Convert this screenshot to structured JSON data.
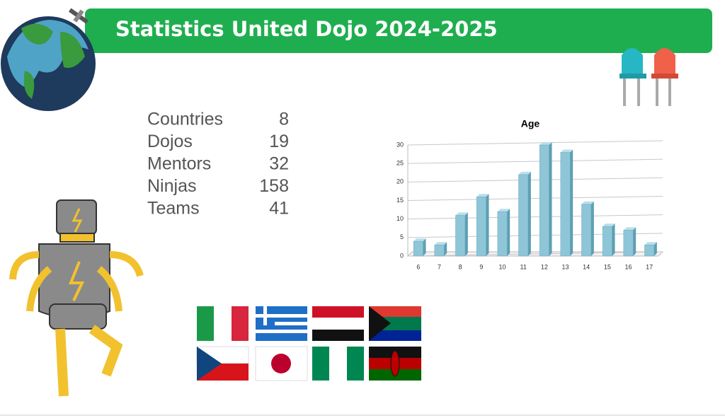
{
  "header": {
    "title": "Statistics United Dojo 2024-2025"
  },
  "stats": {
    "rows": [
      [
        "Countries",
        "8"
      ],
      [
        "Dojos",
        "19"
      ],
      [
        "Mentors",
        "32"
      ],
      [
        "Ninjas",
        "158"
      ],
      [
        "Teams",
        "41"
      ]
    ]
  },
  "chart_data": {
    "type": "bar",
    "title": "Age",
    "categories": [
      "6",
      "7",
      "8",
      "9",
      "10",
      "11",
      "12",
      "13",
      "14",
      "15",
      "16",
      "17"
    ],
    "values": [
      4,
      3,
      11,
      16,
      12,
      22,
      30,
      28,
      14,
      8,
      7,
      3
    ],
    "color": "#8ec6d8",
    "ylim": [
      0,
      30
    ],
    "yticks": [
      0,
      5,
      10,
      15,
      20,
      25,
      30
    ],
    "grid": true
  }
}
